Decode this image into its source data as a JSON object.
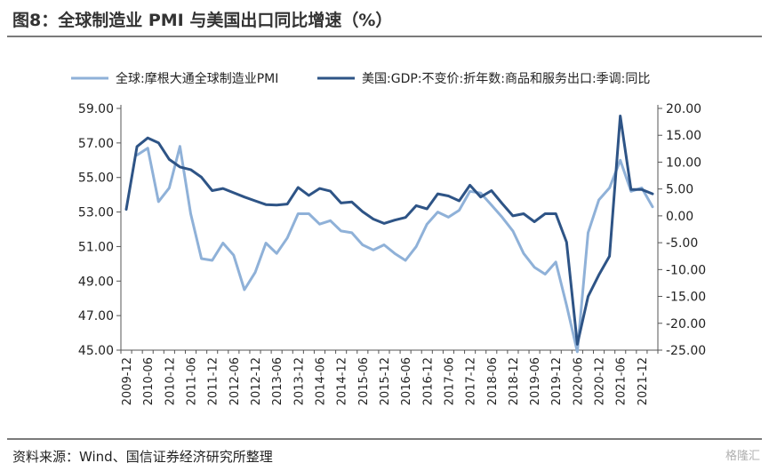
{
  "header": {
    "title": "图8：全球制造业 PMI 与美国出口同比增速（%）"
  },
  "footer": {
    "source": "资料来源：Wind、国信证券经济研究所整理",
    "watermark": "格隆汇"
  },
  "chart_data": {
    "type": "line",
    "legend_position": "top",
    "grid": false,
    "x": [
      "2009-12",
      "2010-03",
      "2010-06",
      "2010-09",
      "2010-12",
      "2011-03",
      "2011-06",
      "2011-09",
      "2011-12",
      "2012-03",
      "2012-06",
      "2012-09",
      "2012-12",
      "2013-03",
      "2013-06",
      "2013-09",
      "2013-12",
      "2014-03",
      "2014-06",
      "2014-09",
      "2014-12",
      "2015-03",
      "2015-06",
      "2015-09",
      "2015-12",
      "2016-03",
      "2016-06",
      "2016-09",
      "2016-12",
      "2017-03",
      "2017-06",
      "2017-09",
      "2017-12",
      "2018-03",
      "2018-06",
      "2018-09",
      "2018-12",
      "2019-03",
      "2019-06",
      "2019-09",
      "2019-12",
      "2020-03",
      "2020-06",
      "2020-09",
      "2020-12",
      "2021-03",
      "2021-06",
      "2021-09",
      "2021-12",
      "2022-03"
    ],
    "xticks": [
      "2009-12",
      "2010-06",
      "2010-12",
      "2011-06",
      "2011-12",
      "2012-06",
      "2012-12",
      "2013-06",
      "2013-12",
      "2014-06",
      "2014-12",
      "2015-06",
      "2015-12",
      "2016-06",
      "2016-12",
      "2017-06",
      "2017-12",
      "2018-06",
      "2018-12",
      "2019-06",
      "2019-12",
      "2020-06",
      "2020-12",
      "2021-06",
      "2021-12"
    ],
    "y_left": {
      "min": 45,
      "max": 59,
      "ticks": [
        "45.00",
        "47.00",
        "49.00",
        "51.00",
        "53.00",
        "55.00",
        "57.00",
        "59.00"
      ]
    },
    "y_right": {
      "min": -25,
      "max": 20,
      "ticks": [
        "-25.00",
        "-20.00",
        "-15.00",
        "-10.00",
        "-5.00",
        "0.00",
        "5.00",
        "10.00",
        "15.00",
        "20.00"
      ]
    },
    "series": [
      {
        "name": "全球:摩根大通全球制造业PMI",
        "axis": "left",
        "color": "#8fb1d8",
        "values": [
          null,
          56.3,
          56.7,
          53.6,
          54.4,
          56.8,
          52.9,
          50.3,
          50.2,
          51.2,
          50.5,
          48.5,
          49.5,
          51.2,
          50.6,
          51.5,
          52.9,
          52.9,
          52.3,
          52.5,
          51.9,
          51.8,
          51.1,
          50.8,
          51.1,
          50.6,
          50.2,
          51.0,
          52.3,
          53.0,
          52.7,
          53.1,
          54.2,
          54.1,
          53.4,
          52.7,
          51.9,
          50.6,
          49.8,
          49.4,
          50.1,
          47.6,
          44.9,
          51.8,
          53.7,
          54.4,
          56.0,
          54.2,
          54.4,
          53.3
        ]
      },
      {
        "name": "美国:GDP:不变价:折年数:商品和服务出口:季调:同比",
        "axis": "right",
        "color": "#2e5486",
        "values": [
          1.2,
          12.9,
          14.5,
          13.6,
          10.5,
          9.1,
          8.6,
          7.2,
          4.7,
          5.1,
          4.3,
          3.5,
          2.8,
          2.1,
          2.0,
          2.2,
          5.3,
          3.8,
          5.1,
          4.6,
          2.4,
          2.6,
          0.8,
          -0.6,
          -1.4,
          -0.8,
          -0.3,
          1.9,
          1.3,
          4.1,
          3.7,
          2.8,
          5.7,
          3.5,
          4.7,
          2.3,
          0.0,
          0.4,
          -1.1,
          0.4,
          0.4,
          -4.9,
          -23.9,
          -15.0,
          -11.0,
          -7.5,
          18.6,
          4.9,
          4.9,
          4.1
        ]
      }
    ]
  }
}
